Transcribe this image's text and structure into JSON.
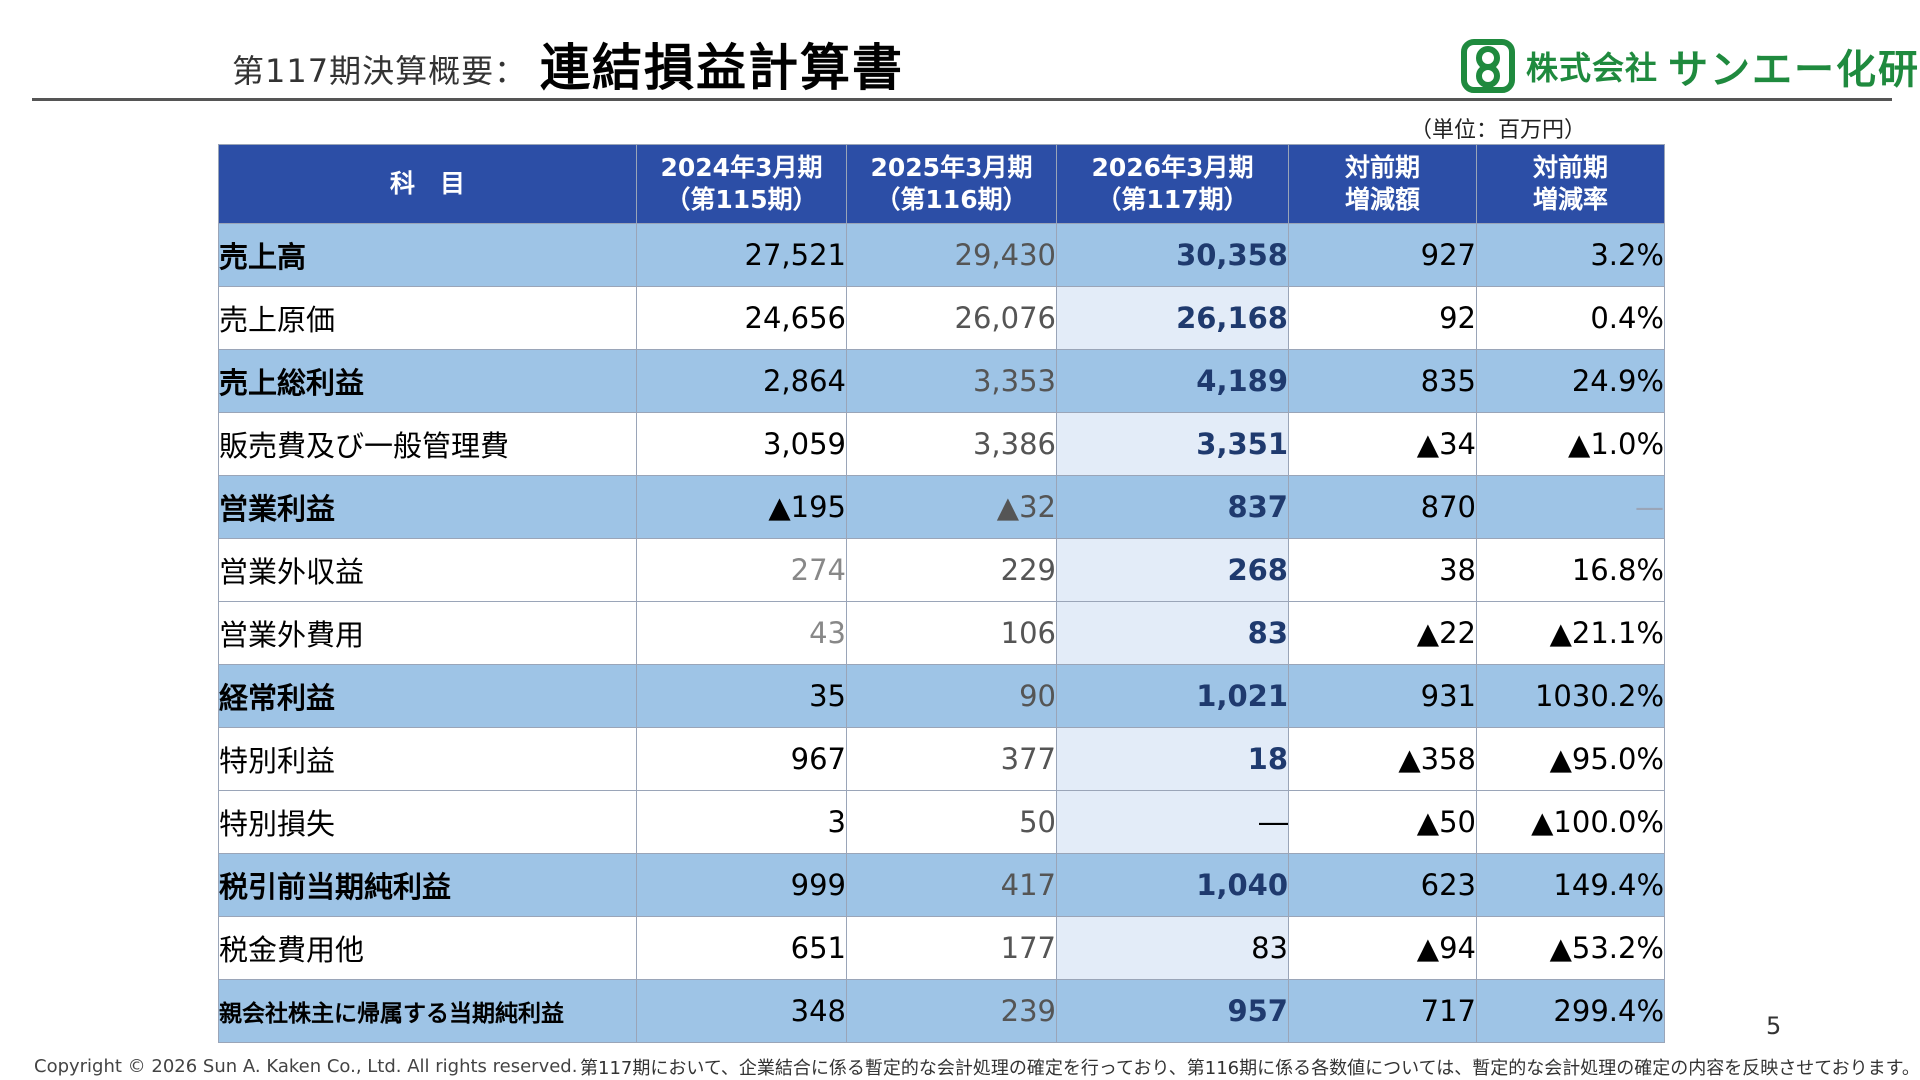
{
  "header": {
    "subtitle": "第117期決算概要：",
    "title": "連結損益計算書"
  },
  "logo": {
    "part1": "株式会社",
    "part2": "サンエー化研"
  },
  "unit": "（単位：百万円）",
  "table": {
    "headers": [
      {
        "l1": "科　目",
        "l2": ""
      },
      {
        "l1": "2024年3月期",
        "l2": "（第115期）"
      },
      {
        "l1": "2025年3月期",
        "l2": "（第116期）"
      },
      {
        "l1": "2026年3月期",
        "l2": "（第117期）"
      },
      {
        "l1": "対前期",
        "l2": "増減額"
      },
      {
        "l1": "対前期",
        "l2": "増減率"
      }
    ],
    "rows": [
      {
        "name": "売上高",
        "fy115": "27,521",
        "fy116": "29,430",
        "fy117": "30,358",
        "diff": "927",
        "rate": "3.2%"
      },
      {
        "name": "売上原価",
        "fy115": "24,656",
        "fy116": "26,076",
        "fy117": "26,168",
        "diff": "92",
        "rate": "0.4%"
      },
      {
        "name": "売上総利益",
        "fy115": "2,864",
        "fy116": "3,353",
        "fy117": "4,189",
        "diff": "835",
        "rate": "24.9%"
      },
      {
        "name": "販売費及び一般管理費",
        "fy115": "3,059",
        "fy116": "3,386",
        "fy117": "3,351",
        "diff": "▲34",
        "rate": "▲1.0%"
      },
      {
        "name": "営業利益",
        "fy115": "▲195",
        "fy116": "▲32",
        "fy117": "837",
        "diff": "870",
        "rate": "—"
      },
      {
        "name": "営業外収益",
        "fy115": "274",
        "fy116": "229",
        "fy117": "268",
        "diff": "38",
        "rate": "16.8%"
      },
      {
        "name": "営業外費用",
        "fy115": "43",
        "fy116": "106",
        "fy117": "83",
        "diff": "▲22",
        "rate": "▲21.1%"
      },
      {
        "name": "経常利益",
        "fy115": "35",
        "fy116": "90",
        "fy117": "1,021",
        "diff": "931",
        "rate": "1030.2%"
      },
      {
        "name": "特別利益",
        "fy115": "967",
        "fy116": "377",
        "fy117": "18",
        "diff": "▲358",
        "rate": "▲95.0%"
      },
      {
        "name": "特別損失",
        "fy115": "3",
        "fy116": "50",
        "fy117": "―",
        "diff": "▲50",
        "rate": "▲100.0%"
      },
      {
        "name": "税引前当期純利益",
        "fy115": "999",
        "fy116": "417",
        "fy117": "1,040",
        "diff": "623",
        "rate": "149.4%"
      },
      {
        "name": "税金費用他",
        "fy115": "651",
        "fy116": "177",
        "fy117": "83",
        "diff": "▲94",
        "rate": "▲53.2%"
      },
      {
        "name": "親会社株主に帰属する当期純利益",
        "fy115": "348",
        "fy116": "239",
        "fy117": "957",
        "diff": "717",
        "rate": "299.4%"
      }
    ]
  },
  "page_number": "5",
  "copyright": "Copyright © 2026 Sun A. Kaken Co., Ltd. All rights reserved.",
  "footnote": "第117期において、企業結合に係る暫定的な会計処理の確定を行っており、第116期に係る各数値については、暫定的な会計処理の確定の内容を反映させております。",
  "colors": {
    "header_bg": "#2c4ea6",
    "highlight_row": "#9ec4e6",
    "current_col": "#e3ecf8",
    "brand_green": "#1f8a3e"
  }
}
